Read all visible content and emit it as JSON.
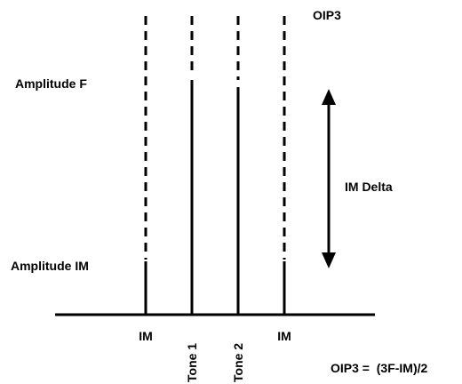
{
  "oip3_label": "OIP3",
  "amplitude_f_label": "Amplitude F",
  "amplitude_im_label": "Amplitude IM",
  "im_delta_label": "IM Delta",
  "tones": [
    {
      "label": "IM"
    },
    {
      "label": "Tone 1"
    },
    {
      "label": "Tone 2"
    },
    {
      "label": "IM"
    }
  ],
  "formula": "OIP3 =  (3F-IM)/2"
}
